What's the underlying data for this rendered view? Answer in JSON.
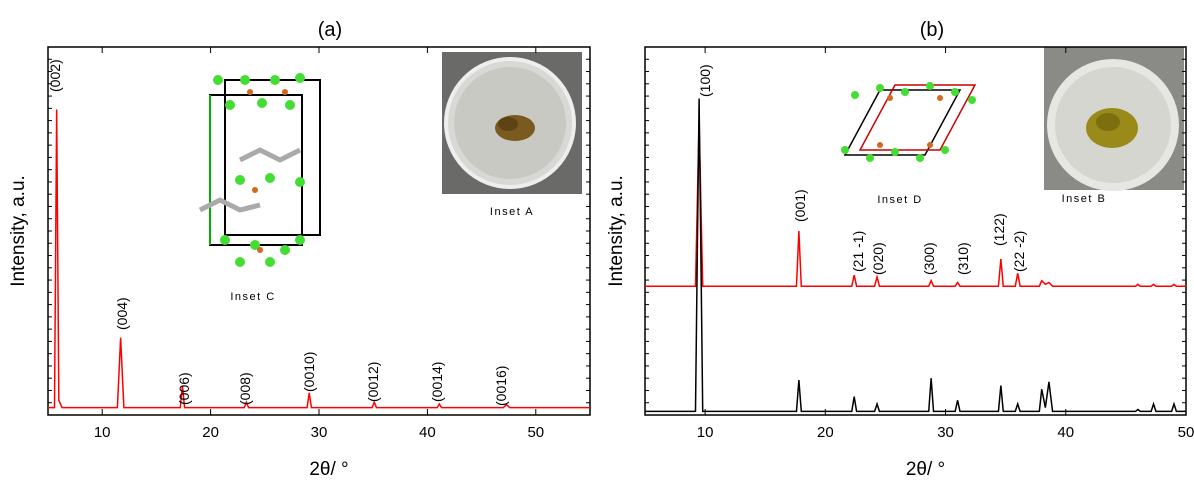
{
  "chart_data": [
    {
      "type": "line",
      "title": "(a)",
      "x_label": "2θ/ °",
      "y_label": "Intensity, a.u.",
      "x": [
        5,
        5.6,
        5.8,
        6.0,
        6.3,
        11.4,
        11.7,
        12.0,
        17.2,
        17.4,
        17.6,
        23.1,
        23.3,
        23.5,
        28.9,
        29.1,
        29.3,
        34.9,
        35.1,
        35.3,
        40.9,
        41.1,
        41.3,
        47.0,
        47.3,
        47.6,
        55
      ],
      "values": [
        2,
        2,
        83,
        4,
        2,
        2,
        21,
        2,
        2,
        8,
        2,
        2,
        3.5,
        2,
        2,
        6,
        2,
        2,
        3.5,
        2,
        2,
        3,
        2,
        2,
        2.8,
        2,
        2
      ],
      "color": "#ff0000",
      "xlim": [
        5,
        55
      ],
      "xticks": [
        10,
        20,
        30,
        40,
        50
      ],
      "ylim": [
        0,
        100
      ],
      "annotations": [
        "(002)",
        "(004)",
        "(006)",
        "(008)",
        "(0010)",
        "(0012)",
        "(0014)",
        "(0016)"
      ],
      "insets": [
        "Inset C",
        "Inset A"
      ]
    },
    {
      "type": "line",
      "title": "(b)",
      "x_label": "2θ/ °",
      "y_label": "Intensity, a.u.",
      "x": [
        5,
        9.2,
        9.5,
        9.8,
        17.6,
        17.8,
        18.0,
        22.2,
        22.4,
        22.6,
        24.1,
        24.3,
        24.5,
        28.6,
        28.8,
        29.0,
        30.8,
        31.0,
        31.2,
        34.4,
        34.6,
        34.8,
        35.8,
        36.0,
        36.2,
        37.8,
        38.0,
        38.3,
        38.6,
        38.9,
        45.8,
        46.0,
        46.2,
        47.1,
        47.3,
        47.5,
        48.8,
        49.0,
        49.2,
        50
      ],
      "series": [
        {
          "color": "#ff0000",
          "values": [
            35,
            35,
            80,
            35,
            35,
            50,
            35,
            35,
            38,
            35,
            35,
            37.5,
            35,
            35,
            36.5,
            35,
            35,
            36,
            35,
            35,
            42.4,
            35,
            35,
            38.5,
            35,
            35,
            36.5,
            35.5,
            36,
            35,
            35,
            35.5,
            35,
            35,
            35.5,
            35,
            35,
            35.5,
            35,
            35
          ]
        },
        {
          "color": "#000000",
          "values": [
            1,
            1,
            86,
            1,
            1,
            9.5,
            1,
            1,
            5,
            1,
            1,
            3,
            1,
            1,
            10,
            1,
            1,
            4,
            1,
            1,
            8,
            1,
            1,
            3,
            1,
            1,
            7,
            2,
            9,
            1,
            1,
            1.5,
            1,
            1,
            3,
            1,
            1,
            3,
            1,
            1
          ]
        }
      ],
      "xlim": [
        5,
        50
      ],
      "xticks": [
        10,
        20,
        30,
        40,
        50
      ],
      "ylim": [
        0,
        100
      ],
      "annotations": [
        "(100)",
        "(001)",
        "(21 -1)",
        "(020)",
        "(300)",
        "(310)",
        "(122)",
        "(22 -2)"
      ],
      "insets": [
        "Inset D",
        "Inset B"
      ]
    }
  ]
}
